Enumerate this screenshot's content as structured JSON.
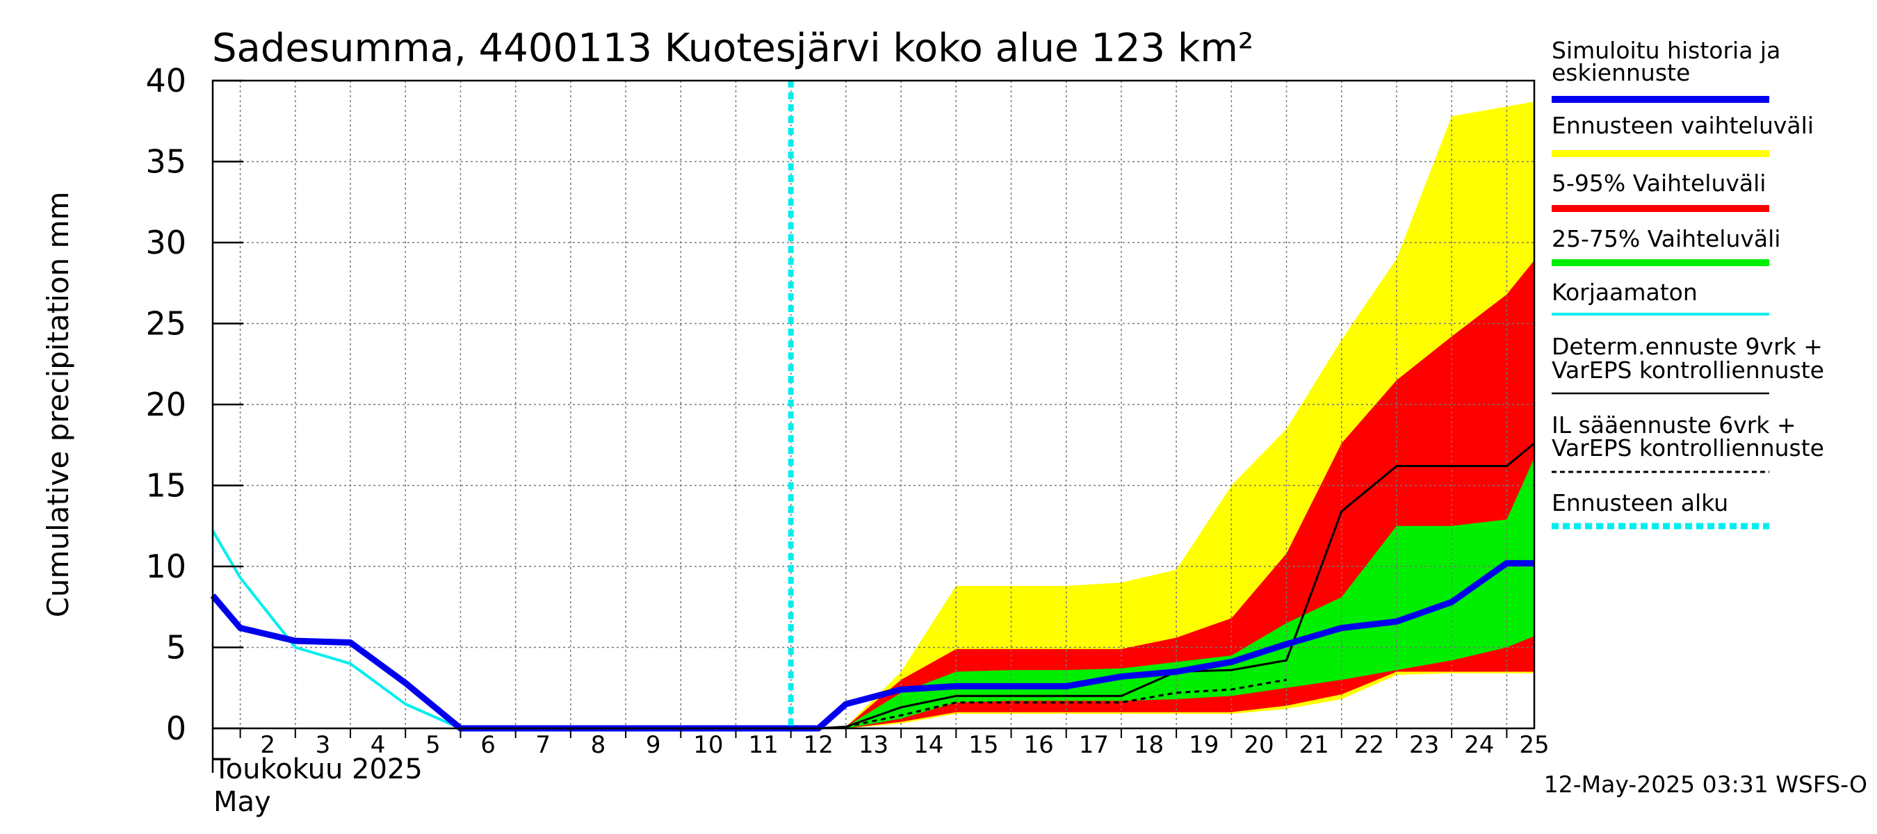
{
  "chart_data": {
    "type": "area",
    "title": "Sadesumma, 4400113 Kuotesjärvi koko alue 123 km²",
    "ylabel": "Cumulative precipitation   mm",
    "month_label_fi": "Toukokuu  2025",
    "month_label_en": "May",
    "timestamp": "12-May-2025 03:31 WSFS-O",
    "ylim": [
      0,
      40
    ],
    "xlim": [
      "2025-05-01T12:00",
      "2025-05-25T12:00"
    ],
    "y_ticks": [
      "0",
      "5",
      "10",
      "15",
      "20",
      "25",
      "30",
      "35",
      "40"
    ],
    "x_ticks": [
      "2",
      "3",
      "4",
      "5",
      "6",
      "7",
      "8",
      "9",
      "10",
      "11",
      "12",
      "13",
      "14",
      "15",
      "16",
      "17",
      "18",
      "19",
      "20",
      "21",
      "22",
      "23",
      "24",
      "25"
    ],
    "grid": true,
    "forecast_start": "2025-05-12T00:00",
    "bands": [
      {
        "name": "Ennusteen vaihteluväli",
        "color": "#ffff00",
        "x": [
          "2025-05-12T12:00",
          "2025-05-13",
          "2025-05-14",
          "2025-05-15",
          "2025-05-16",
          "2025-05-17",
          "2025-05-18",
          "2025-05-19",
          "2025-05-20",
          "2025-05-21",
          "2025-05-22",
          "2025-05-23",
          "2025-05-24",
          "2025-05-25",
          "2025-05-25T12:00"
        ],
        "upper": [
          0,
          0.1,
          3.5,
          8.8,
          8.8,
          8.8,
          9.0,
          9.8,
          15.0,
          18.5,
          24.0,
          29.0,
          37.8,
          38.4,
          38.7
        ],
        "lower": [
          0,
          0,
          0.3,
          0.9,
          0.9,
          0.9,
          0.9,
          0.9,
          0.9,
          1.2,
          1.8,
          3.3,
          3.4,
          3.4,
          3.4
        ]
      },
      {
        "name": "5-95% Vaihteluväli",
        "color": "#ff0000",
        "x": [
          "2025-05-12T12:00",
          "2025-05-13",
          "2025-05-14",
          "2025-05-15",
          "2025-05-16",
          "2025-05-17",
          "2025-05-18",
          "2025-05-19",
          "2025-05-20",
          "2025-05-21",
          "2025-05-22",
          "2025-05-23",
          "2025-05-24",
          "2025-05-25",
          "2025-05-25T12:00"
        ],
        "upper": [
          0,
          0.1,
          3.0,
          4.9,
          4.9,
          4.9,
          4.9,
          5.6,
          6.8,
          10.8,
          17.6,
          21.5,
          24.2,
          26.8,
          28.9
        ],
        "lower": [
          0,
          0,
          0.4,
          1.0,
          1.0,
          1.0,
          1.0,
          1.0,
          1.0,
          1.4,
          2.1,
          3.5,
          3.5,
          3.5,
          3.5
        ]
      },
      {
        "name": "25-75% Vaihteluväli",
        "color": "#00ee00",
        "x": [
          "2025-05-12T12:00",
          "2025-05-13",
          "2025-05-14",
          "2025-05-15",
          "2025-05-16",
          "2025-05-17",
          "2025-05-18",
          "2025-05-19",
          "2025-05-20",
          "2025-05-21",
          "2025-05-22",
          "2025-05-23",
          "2025-05-24",
          "2025-05-25",
          "2025-05-25T12:00"
        ],
        "upper": [
          0,
          0.1,
          2.2,
          3.5,
          3.6,
          3.6,
          3.7,
          4.1,
          4.5,
          6.5,
          8.1,
          12.5,
          12.5,
          12.9,
          16.7
        ],
        "lower": [
          0,
          0,
          0.6,
          1.6,
          1.7,
          1.7,
          1.7,
          1.8,
          2.0,
          2.5,
          3.0,
          3.6,
          4.2,
          5.0,
          5.7
        ]
      }
    ],
    "series": [
      {
        "name": "Korjaamaton",
        "color": "#00eeee",
        "style": "solid",
        "x": [
          "2025-05-01T12:00",
          "2025-05-02",
          "2025-05-03",
          "2025-05-04",
          "2025-05-05",
          "2025-05-06",
          "2025-05-07",
          "2025-05-08",
          "2025-05-09",
          "2025-05-10",
          "2025-05-11",
          "2025-05-12",
          "2025-05-12T12:00"
        ],
        "y": [
          12.2,
          9.3,
          5.0,
          4.0,
          1.5,
          0,
          0,
          0,
          0,
          0,
          0,
          0,
          0
        ]
      },
      {
        "name": "Determ.ennuste 9vrk + VarEPS kontrolliennuste",
        "color": "#000000",
        "style": "solid",
        "x": [
          "2025-05-12T12:00",
          "2025-05-13",
          "2025-05-14",
          "2025-05-15",
          "2025-05-16",
          "2025-05-17",
          "2025-05-18",
          "2025-05-19",
          "2025-05-20",
          "2025-05-21",
          "2025-05-22",
          "2025-05-23",
          "2025-05-24",
          "2025-05-25",
          "2025-05-25T12:00"
        ],
        "y": [
          0,
          0.1,
          1.3,
          2.0,
          2.0,
          2.0,
          2.0,
          3.5,
          3.6,
          4.2,
          13.4,
          16.2,
          16.2,
          16.2,
          17.6
        ]
      },
      {
        "name": "IL sääennuste 6vrk  +   VarEPS kontrolliennuste",
        "color": "#000000",
        "style": "dashed",
        "x": [
          "2025-05-12T12:00",
          "2025-05-13",
          "2025-05-14",
          "2025-05-15",
          "2025-05-16",
          "2025-05-17",
          "2025-05-18",
          "2025-05-19",
          "2025-05-20",
          "2025-05-21"
        ],
        "y": [
          0,
          0.1,
          0.8,
          1.6,
          1.6,
          1.6,
          1.6,
          2.2,
          2.4,
          3.0
        ]
      },
      {
        "name": "Simuloitu historia ja keskiennuste",
        "color": "#0000ee",
        "style": "thick",
        "x": [
          "2025-05-01T12:00",
          "2025-05-02",
          "2025-05-03",
          "2025-05-04",
          "2025-05-05",
          "2025-05-06",
          "2025-05-07",
          "2025-05-08",
          "2025-05-09",
          "2025-05-10",
          "2025-05-11",
          "2025-05-12",
          "2025-05-12T12:00",
          "2025-05-13",
          "2025-05-14",
          "2025-05-15",
          "2025-05-16",
          "2025-05-17",
          "2025-05-18",
          "2025-05-19",
          "2025-05-20",
          "2025-05-21",
          "2025-05-22",
          "2025-05-23",
          "2025-05-24",
          "2025-05-25",
          "2025-05-25T12:00"
        ],
        "y": [
          8.2,
          6.2,
          5.4,
          5.3,
          2.8,
          0,
          0,
          0,
          0,
          0,
          0,
          0,
          0,
          1.5,
          2.4,
          2.6,
          2.6,
          2.6,
          3.2,
          3.5,
          4.1,
          5.2,
          6.2,
          6.6,
          7.8,
          10.2,
          10.2
        ]
      }
    ],
    "legend_position": "right",
    "legend": [
      {
        "label": "Simuloitu historia ja keskiennuste",
        "color": "#0000ee",
        "style": "thick"
      },
      {
        "label": "Ennusteen vaihteluväli",
        "color": "#ffff00",
        "style": "thick"
      },
      {
        "label": "5-95% Vaihteluväli",
        "color": "#ff0000",
        "style": "thick"
      },
      {
        "label": "25-75% Vaihteluväli",
        "color": "#00ee00",
        "style": "thick"
      },
      {
        "label": "Korjaamaton",
        "color": "#00eeee",
        "style": "solid"
      },
      {
        "label": "Determ.ennuste 9vrk + VarEPS kontrolliennuste",
        "color": "#000000",
        "style": "solid"
      },
      {
        "label": "IL sääennuste 6vrk  +   VarEPS kontrolliennuste",
        "color": "#000000",
        "style": "dashed"
      },
      {
        "label": "Ennusteen alku",
        "color": "#00eeee",
        "style": "dotted"
      }
    ]
  }
}
